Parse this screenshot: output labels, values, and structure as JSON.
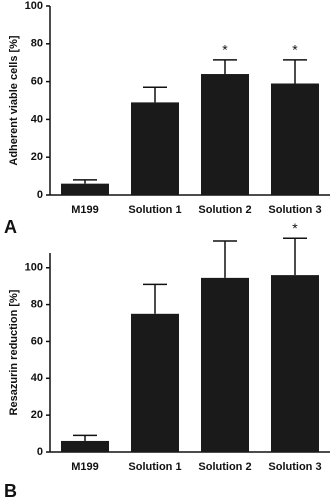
{
  "chart_data": [
    {
      "type": "bar",
      "panel_label": "A",
      "y_label": "Adherent viable cells [%]",
      "categories": [
        "M199",
        "Solution 1",
        "Solution 2",
        "Solution 3"
      ],
      "values": [
        6,
        49,
        64,
        59
      ],
      "errors": [
        2,
        8,
        7.5,
        12.5
      ],
      "significance": [
        null,
        null,
        "*",
        "*"
      ],
      "color": "#1a1a1a",
      "ylim": [
        0,
        100
      ],
      "yticks": [
        0,
        20,
        40,
        60,
        80,
        100
      ]
    },
    {
      "type": "bar",
      "panel_label": "B",
      "y_label": "Resazurin reduction [%]",
      "categories": [
        "M199",
        "Solution 1",
        "Solution 2",
        "Solution 3"
      ],
      "values": [
        6,
        75,
        94.5,
        96
      ],
      "errors": [
        3,
        16,
        20,
        20
      ],
      "significance": [
        null,
        null,
        null,
        "*"
      ],
      "color": "#1a1a1a",
      "ylim": [
        0,
        108
      ],
      "yticks": [
        0,
        20,
        40,
        60,
        80,
        100
      ]
    }
  ]
}
